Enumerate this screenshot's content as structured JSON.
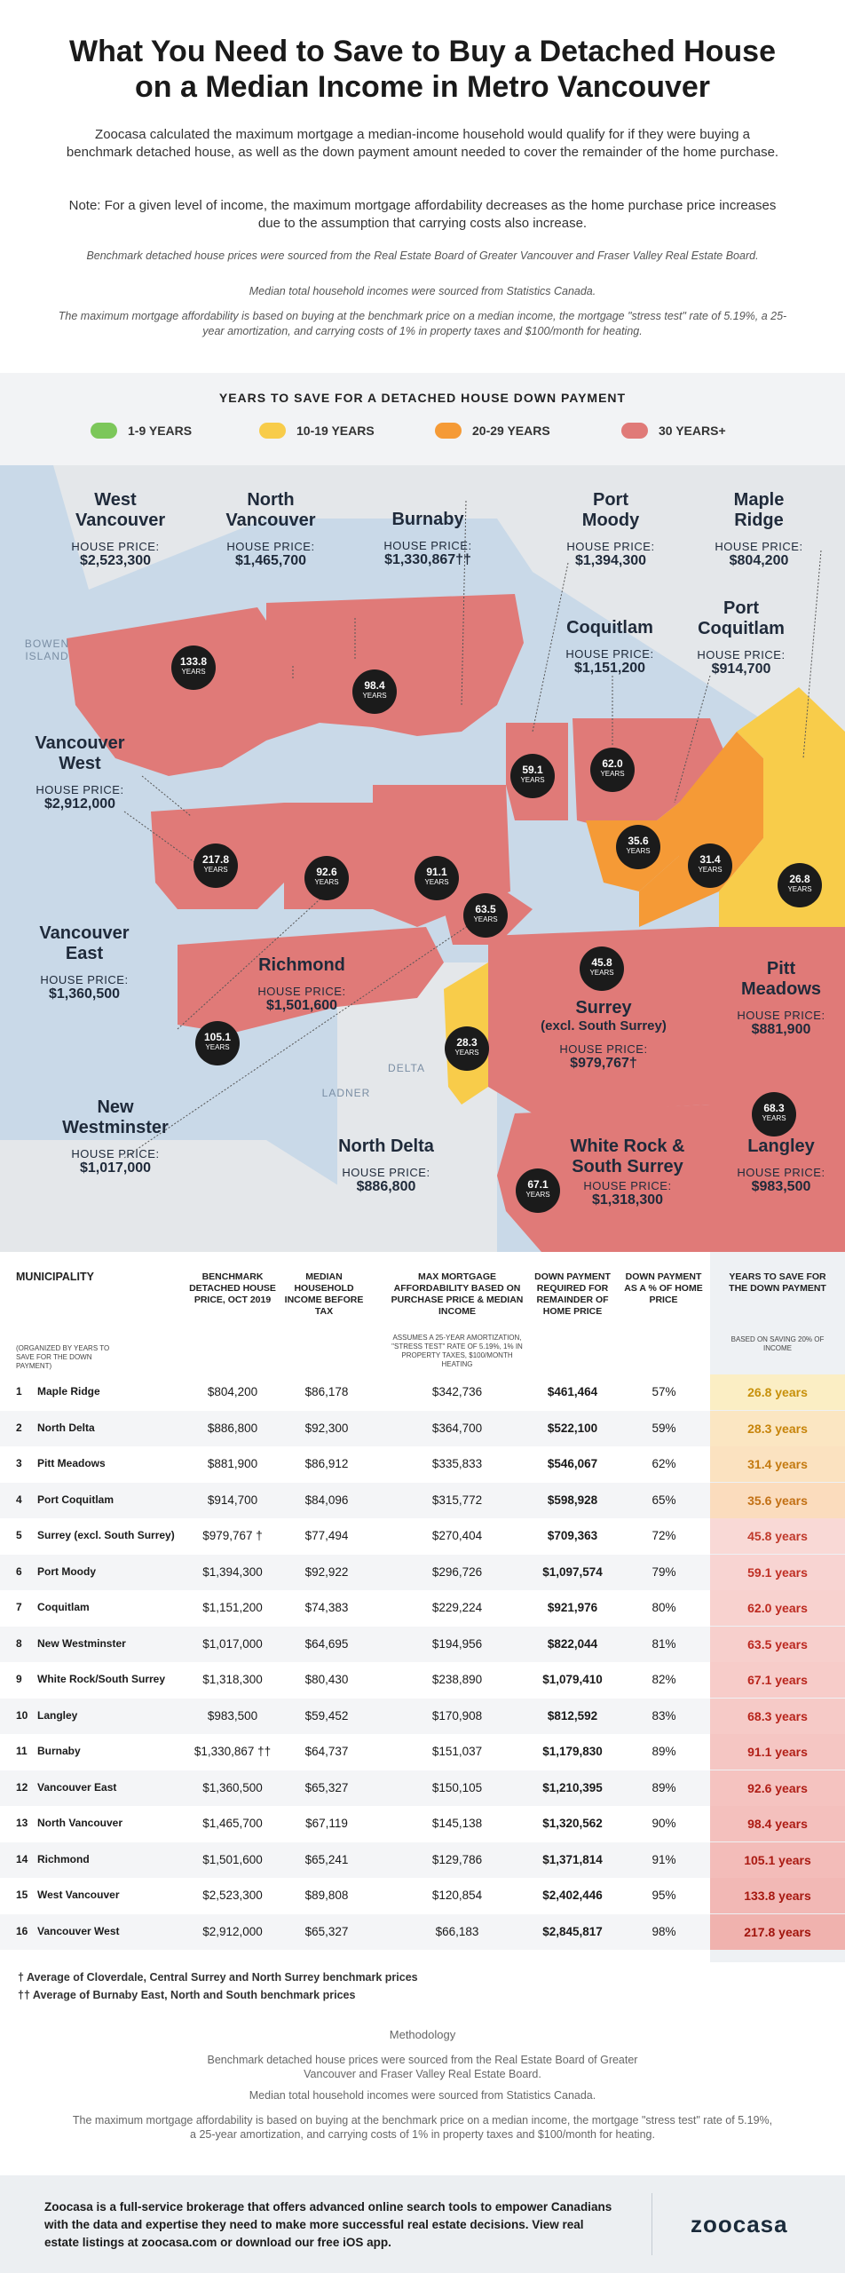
{
  "header": {
    "title_line1": "What You Need to Save to Buy a Detached House",
    "title_line2": "on a Median Income in Metro Vancouver",
    "intro": "Zoocasa calculated the maximum mortgage a median-income household would qualify for if they were buying a benchmark detached house, as well as the down payment amount needed to cover the remainder of the home purchase.",
    "note": "Note: For a given level of income, the maximum mortgage affordability decreases as the home purchase price increases due to the assumption that carrying costs also increase.",
    "source1": "Benchmark detached house prices were sourced from the Real Estate Board of Greater Vancouver and Fraser Valley Real Estate Board.",
    "source2": "Median total household incomes were sourced from Statistics Canada.",
    "source3": "The maximum mortgage affordability is based on buying at the benchmark price on a median income, the mortgage \"stress test\" rate of 5.19%, a 25-year amortization, and carrying costs of 1% in property taxes and $100/month for heating."
  },
  "legend": {
    "title": "YEARS TO SAVE FOR A DETACHED HOUSE DOWN PAYMENT",
    "items": [
      {
        "label": "1-9 YEARS",
        "color": "#7cc75a"
      },
      {
        "label": "10-19 YEARS",
        "color": "#f8cc4a"
      },
      {
        "label": "20-29 YEARS",
        "color": "#f59a36"
      },
      {
        "label": "30 YEARS+",
        "color": "#e07a78"
      }
    ]
  },
  "map": {
    "house_price_label": "HOUSE PRICE:",
    "years_label": "YEARS",
    "water": {
      "bowen": "BOWEN ISLAND",
      "delta": "DELTA",
      "ladner": "LADNER"
    },
    "regions": {
      "west_vancouver": {
        "name": "West Vancouver",
        "price": "$2,523,300",
        "years": "133.8"
      },
      "north_vancouver": {
        "name": "North Vancouver",
        "price": "$1,465,700",
        "years": "98.4"
      },
      "burnaby": {
        "name": "Burnaby",
        "price": "$1,330,867††",
        "years": "91.1"
      },
      "port_moody": {
        "name": "Port Moody",
        "price": "$1,394,300",
        "years": "59.1"
      },
      "maple_ridge": {
        "name": "Maple Ridge",
        "price": "$804,200",
        "years": "26.8"
      },
      "coquitlam": {
        "name": "Coquitlam",
        "price": "$1,151,200",
        "years": "62.0"
      },
      "port_coquitlam": {
        "name": "Port Coquitlam",
        "price": "$914,700",
        "years": "35.6"
      },
      "vancouver_west": {
        "name": "Vancouver West",
        "price": "$2,912,000",
        "years": "217.8"
      },
      "vancouver_east": {
        "name": "Vancouver East",
        "price": "$1,360,500",
        "years": "92.6"
      },
      "richmond": {
        "name": "Richmond",
        "price": "$1,501,600",
        "years": "105.1"
      },
      "new_westminster": {
        "name": "New Westminster",
        "price": "$1,017,000",
        "years": "63.5"
      },
      "surrey": {
        "name": "Surrey",
        "sub": "(excl. South Surrey)",
        "price": "$979,767†",
        "years": "45.8"
      },
      "pitt_meadows": {
        "name": "Pitt Meadows",
        "price": "$881,900",
        "years": "31.4"
      },
      "north_delta": {
        "name": "North Delta",
        "price": "$886,800",
        "years": "28.3"
      },
      "white_rock": {
        "name": "White Rock & South Surrey",
        "price": "$1,318,300",
        "years": "67.1"
      },
      "langley": {
        "name": "Langley",
        "price": "$983,500",
        "years": "68.3"
      }
    }
  },
  "table": {
    "headers": {
      "municipality": "MUNICIPALITY",
      "municipality_sub": "(ORGANIZED BY YEARS TO SAVE FOR THE DOWN PAYMENT)",
      "benchmark": "BENCHMARK DETACHED HOUSE PRICE, OCT 2019",
      "income": "MEDIAN HOUSEHOLD INCOME BEFORE TAX",
      "mortgage": "MAX MORTGAGE AFFORDABILITY BASED ON PURCHASE PRICE & MEDIAN INCOME",
      "mortgage_sub": "ASSUMES A 25-YEAR AMORTIZATION, \"STRESS TEST\" RATE OF 5.19%, 1% IN PROPERTY TAXES, $100/MONTH HEATING",
      "down": "DOWN PAYMENT REQUIRED FOR REMAINDER OF HOME PRICE",
      "pct": "DOWN PAYMENT AS A % OF HOME PRICE",
      "years": "YEARS TO SAVE FOR THE DOWN PAYMENT",
      "years_sub": "BASED ON SAVING 20% OF INCOME"
    },
    "rows": [
      {
        "n": "1",
        "name": "Maple Ridge",
        "price": "$804,200",
        "income": "$86,178",
        "mortgage": "$342,736",
        "down": "$461,464",
        "pct": "57%",
        "years": "26.8 years",
        "bg": "#fbeec4",
        "fg": "#c7900a"
      },
      {
        "n": "2",
        "name": "North Delta",
        "price": "$886,800",
        "income": "$92,300",
        "mortgage": "$364,700",
        "down": "$522,100",
        "pct": "59%",
        "years": "28.3 years",
        "bg": "#fbe6c2",
        "fg": "#c7840a"
      },
      {
        "n": "3",
        "name": "Pitt Meadows",
        "price": "$881,900",
        "income": "$86,912",
        "mortgage": "$335,833",
        "down": "$546,067",
        "pct": "62%",
        "years": "31.4 years",
        "bg": "#fbe2c0",
        "fg": "#c47a10"
      },
      {
        "n": "4",
        "name": "Port Coquitlam",
        "price": "$914,700",
        "income": "$84,096",
        "mortgage": "$315,772",
        "down": "$598,928",
        "pct": "65%",
        "years": "35.6 years",
        "bg": "#fbdcbd",
        "fg": "#c27014"
      },
      {
        "n": "5",
        "name": "Surrey (excl. South Surrey)",
        "price": "$979,767 †",
        "income": "$77,494",
        "mortgage": "$270,404",
        "down": "$709,363",
        "pct": "72%",
        "years": "45.8 years",
        "bg": "#f9d9d6",
        "fg": "#c0392b"
      },
      {
        "n": "6",
        "name": "Port Moody",
        "price": "$1,394,300",
        "income": "$92,922",
        "mortgage": "$296,726",
        "down": "$1,097,574",
        "pct": "79%",
        "years": "59.1 years",
        "bg": "#f8d4d2",
        "fg": "#bf2f24"
      },
      {
        "n": "7",
        "name": "Coquitlam",
        "price": "$1,151,200",
        "income": "$74,383",
        "mortgage": "$229,224",
        "down": "$921,976",
        "pct": "80%",
        "years": "62.0 years",
        "bg": "#f8d2cf",
        "fg": "#bd2a20"
      },
      {
        "n": "8",
        "name": "New Westminster",
        "price": "$1,017,000",
        "income": "$64,695",
        "mortgage": "$194,956",
        "down": "$822,044",
        "pct": "81%",
        "years": "63.5 years",
        "bg": "#f7cfcc",
        "fg": "#bb2820"
      },
      {
        "n": "9",
        "name": "White Rock/South Surrey",
        "price": "$1,318,300",
        "income": "$80,430",
        "mortgage": "$238,890",
        "down": "$1,079,410",
        "pct": "82%",
        "years": "67.1 years",
        "bg": "#f7ccc9",
        "fg": "#b9261d"
      },
      {
        "n": "10",
        "name": "Langley",
        "price": "$983,500",
        "income": "$59,452",
        "mortgage": "$170,908",
        "down": "$812,592",
        "pct": "83%",
        "years": "68.3 years",
        "bg": "#f6cac7",
        "fg": "#b7241b"
      },
      {
        "n": "11",
        "name": "Burnaby",
        "price": "$1,330,867 ††",
        "income": "$64,737",
        "mortgage": "$151,037",
        "down": "$1,179,830",
        "pct": "89%",
        "years": "91.1 years",
        "bg": "#f5c6c3",
        "fg": "#b22018"
      },
      {
        "n": "12",
        "name": "Vancouver East",
        "price": "$1,360,500",
        "income": "$65,327",
        "mortgage": "$150,105",
        "down": "$1,210,395",
        "pct": "89%",
        "years": "92.6 years",
        "bg": "#f5c3c0",
        "fg": "#b01e16"
      },
      {
        "n": "13",
        "name": "North Vancouver",
        "price": "$1,465,700",
        "income": "$67,119",
        "mortgage": "$145,138",
        "down": "$1,320,562",
        "pct": "90%",
        "years": "98.4 years",
        "bg": "#f4c0bd",
        "fg": "#ad1c14"
      },
      {
        "n": "14",
        "name": "Richmond",
        "price": "$1,501,600",
        "income": "$65,241",
        "mortgage": "$129,786",
        "down": "$1,371,814",
        "pct": "91%",
        "years": "105.1 years",
        "bg": "#f3bcb9",
        "fg": "#aa1a12"
      },
      {
        "n": "15",
        "name": "West Vancouver",
        "price": "$2,523,300",
        "income": "$89,808",
        "mortgage": "$120,854",
        "down": "$2,402,446",
        "pct": "95%",
        "years": "133.8 years",
        "bg": "#f2b8b5",
        "fg": "#a61810"
      },
      {
        "n": "16",
        "name": "Vancouver West",
        "price": "$2,912,000",
        "income": "$65,327",
        "mortgage": "$66,183",
        "down": "$2,845,817",
        "pct": "98%",
        "years": "217.8 years",
        "bg": "#f0b2ae",
        "fg": "#a0140c"
      }
    ],
    "footnote1": "† Average of Cloverdale, Central Surrey and North Surrey benchmark prices",
    "footnote2": "†† Average of Burnaby East, North and South benchmark prices"
  },
  "methodology": {
    "title": "Methodology",
    "p1": "Benchmark detached house prices were sourced from the Real Estate Board of Greater Vancouver and Fraser Valley Real Estate Board.",
    "p2": "Median total household incomes were sourced from Statistics Canada.",
    "p3": "The maximum mortgage affordability is based on buying at the benchmark price on a median income, the mortgage \"stress test\" rate of 5.19%, a 25-year amortization, and carrying costs of 1% in property taxes and $100/month for heating."
  },
  "footer": {
    "text": "Zoocasa is a full-service brokerage that offers advanced online search tools to empower Canadians with the data and expertise they need to make more successful real estate decisions. View real estate listings at zoocasa.com or download our free iOS app.",
    "logo": "zoocasa"
  }
}
